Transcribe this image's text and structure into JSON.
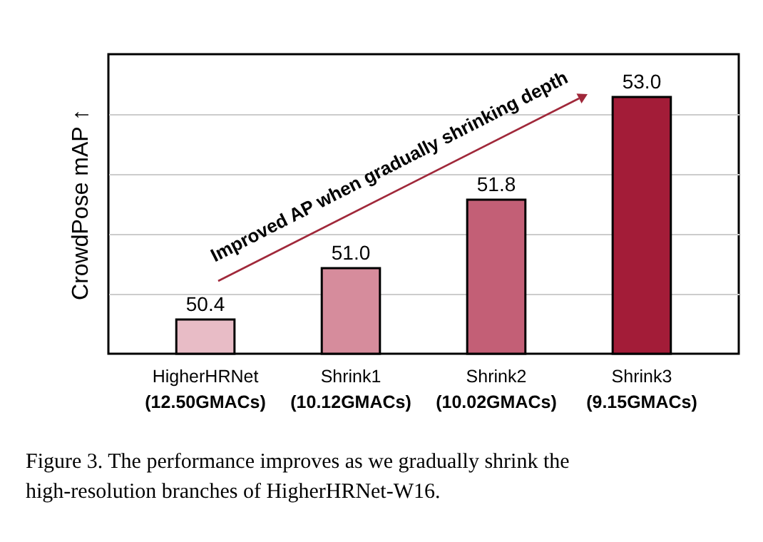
{
  "chart_data": {
    "type": "bar",
    "categories": [
      "HigherHRNet\n(12.50GMACs)",
      "Shrink1\n(10.12GMACs)",
      "Shrink2\n(10.02GMACs)",
      "Shrink3\n(9.15GMACs)"
    ],
    "values": [
      50.4,
      51.0,
      51.8,
      53.0
    ],
    "colors": [
      "#e8bcc6",
      "#d68c9c",
      "#c35f76",
      "#a31c38"
    ],
    "ylabel": "CrowdPose mAP ↑",
    "ylim": [
      50,
      53.5
    ],
    "yticks": [
      {
        "value": 50.7,
        "label": null
      },
      {
        "value": 51.4,
        "label": null
      },
      {
        "value": 52.1,
        "label": null
      },
      {
        "value": 52.8,
        "label": null
      }
    ],
    "grid": "y",
    "tick_labels": "x",
    "value_labels": [
      "50.4",
      "51.0",
      "51.8",
      "53.0"
    ],
    "annotations": [
      "Improved AP when gradually shrinking depth",
      "Figure 3. The performance improves as we gradually shrink the high-resolution branches of HigherHRNet-W16."
    ]
  }
}
